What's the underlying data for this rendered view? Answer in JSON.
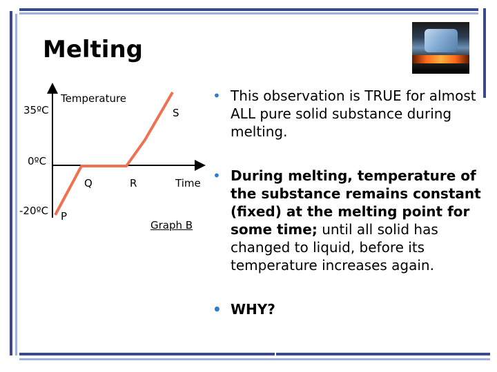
{
  "slide": {
    "title": "Melting",
    "image_desc": "ice-cube-icon"
  },
  "graph": {
    "y_axis_label": "Temperature",
    "y_tick_top": "35ºC",
    "y_tick_mid": "0ºC",
    "y_tick_bottom": "-20ºC",
    "x_axis_label": "Time",
    "point_p": "P",
    "point_q": "Q",
    "point_r": "R",
    "point_s": "S",
    "caption": "Graph B",
    "line_color": "#f07050"
  },
  "bullets": {
    "b1": "This observation is TRUE for almost ALL pure solid substance during melting.",
    "b2_bold": "During melting, temperature of the substance remains constant (fixed) at the melting point for some time;",
    "b2_rest": " until all solid has changed to liquid, before its temperature increases again.",
    "b3": "WHY?",
    "bullet_color": "#2a7fd4"
  }
}
